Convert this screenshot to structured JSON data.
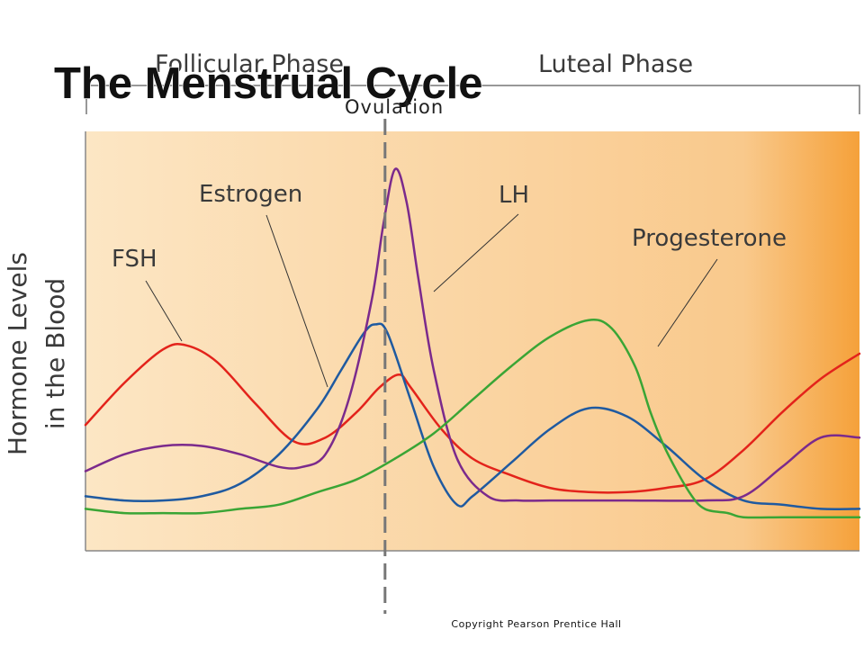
{
  "chart_data": {
    "type": "line",
    "title": "The Menstrual Cycle",
    "ylabel_lines": [
      "Hormone Levels",
      "in the Blood"
    ],
    "phases": [
      {
        "label": "Follicular Phase",
        "x_start": 0,
        "x_end": 0.387
      },
      {
        "label": "Luteal Phase",
        "x_start": 0.387,
        "x_end": 1
      }
    ],
    "ovulation": {
      "label": "Ovulation",
      "x": 0.387
    },
    "xlim": [
      0,
      1
    ],
    "ylim": [
      0,
      1
    ],
    "grid": false,
    "legend": "labels on curves",
    "series": [
      {
        "name": "FSH",
        "color": "#e3231b",
        "x": [
          0,
          0.05,
          0.1,
          0.13,
          0.17,
          0.22,
          0.27,
          0.31,
          0.35,
          0.38,
          0.405,
          0.42,
          0.46,
          0.5,
          0.55,
          0.6,
          0.65,
          0.7,
          0.75,
          0.8,
          0.85,
          0.9,
          0.95,
          1
        ],
        "y": [
          0.3,
          0.4,
          0.48,
          0.49,
          0.45,
          0.35,
          0.26,
          0.27,
          0.33,
          0.39,
          0.42,
          0.39,
          0.29,
          0.22,
          0.18,
          0.15,
          0.14,
          0.14,
          0.15,
          0.17,
          0.24,
          0.33,
          0.41,
          0.47
        ]
      },
      {
        "name": "Estrogen",
        "color": "#1f5aa0",
        "x": [
          0,
          0.05,
          0.1,
          0.15,
          0.2,
          0.25,
          0.3,
          0.33,
          0.36,
          0.375,
          0.39,
          0.42,
          0.45,
          0.48,
          0.5,
          0.55,
          0.6,
          0.65,
          0.7,
          0.75,
          0.8,
          0.85,
          0.9,
          0.95,
          1
        ],
        "y": [
          0.13,
          0.12,
          0.12,
          0.13,
          0.16,
          0.23,
          0.34,
          0.43,
          0.52,
          0.54,
          0.52,
          0.36,
          0.2,
          0.11,
          0.13,
          0.21,
          0.29,
          0.34,
          0.32,
          0.25,
          0.17,
          0.12,
          0.11,
          0.1,
          0.1
        ]
      },
      {
        "name": "LH",
        "color": "#7b2a8c",
        "x": [
          0,
          0.05,
          0.1,
          0.15,
          0.2,
          0.25,
          0.28,
          0.31,
          0.34,
          0.37,
          0.385,
          0.4,
          0.415,
          0.43,
          0.45,
          0.48,
          0.52,
          0.56,
          0.6,
          0.7,
          0.8,
          0.85,
          0.9,
          0.95,
          1
        ],
        "y": [
          0.19,
          0.23,
          0.25,
          0.25,
          0.23,
          0.2,
          0.2,
          0.23,
          0.36,
          0.6,
          0.78,
          0.91,
          0.83,
          0.65,
          0.43,
          0.22,
          0.13,
          0.12,
          0.12,
          0.12,
          0.12,
          0.13,
          0.2,
          0.27,
          0.27
        ]
      },
      {
        "name": "Progesterone",
        "color": "#3aa535",
        "x": [
          0,
          0.05,
          0.1,
          0.15,
          0.2,
          0.25,
          0.3,
          0.35,
          0.4,
          0.45,
          0.5,
          0.55,
          0.6,
          0.65,
          0.68,
          0.71,
          0.73,
          0.75,
          0.78,
          0.8,
          0.83,
          0.85,
          0.9,
          0.95,
          1
        ],
        "y": [
          0.1,
          0.09,
          0.09,
          0.09,
          0.1,
          0.11,
          0.14,
          0.17,
          0.22,
          0.28,
          0.36,
          0.44,
          0.51,
          0.55,
          0.53,
          0.44,
          0.33,
          0.24,
          0.14,
          0.1,
          0.09,
          0.08,
          0.08,
          0.08,
          0.08
        ]
      }
    ],
    "series_labels": [
      {
        "name": "FSH",
        "text": "FSH"
      },
      {
        "name": "Estrogen",
        "text": "Estrogen"
      },
      {
        "name": "LH",
        "text": "LH"
      },
      {
        "name": "Progesterone",
        "text": "Progesterone"
      }
    ],
    "background_gradient": [
      "#fce6c4",
      "#f9c98c",
      "#f5a13a"
    ]
  },
  "footer": {
    "copyright": "Copyright Pearson Prentice Hall"
  }
}
